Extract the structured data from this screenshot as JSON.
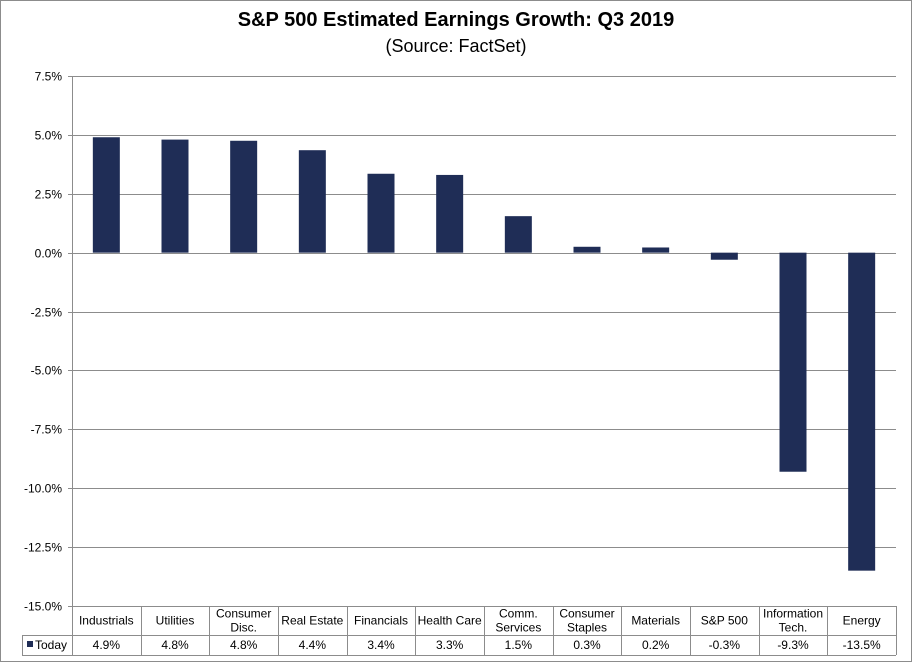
{
  "chart_data": {
    "type": "bar",
    "title": "S&P 500 Estimated Earnings Growth: Q3 2019",
    "subtitle": "(Source: FactSet)",
    "categories": [
      [
        "Industrials"
      ],
      [
        "Utilities"
      ],
      [
        "Consumer",
        "Disc."
      ],
      [
        "Real Estate"
      ],
      [
        "Financials"
      ],
      [
        "Health Care"
      ],
      [
        "Comm.",
        "Services"
      ],
      [
        "Consumer",
        "Staples"
      ],
      [
        "Materials"
      ],
      [
        "S&P 500"
      ],
      [
        "Information",
        "Tech."
      ],
      [
        "Energy"
      ]
    ],
    "series": [
      {
        "name": "Today",
        "color": "#1f2d56",
        "values": [
          4.9,
          4.8,
          4.75,
          4.35,
          3.35,
          3.3,
          1.55,
          0.25,
          0.22,
          -0.3,
          -9.3,
          -13.5
        ],
        "labels": [
          "4.9%",
          "4.8%",
          "4.8%",
          "4.4%",
          "3.4%",
          "3.3%",
          "1.5%",
          "0.3%",
          "0.2%",
          "-0.3%",
          "-9.3%",
          "-13.5%"
        ]
      }
    ],
    "ylim": [
      -15,
      7.5
    ],
    "yticks": [
      7.5,
      5.0,
      2.5,
      0.0,
      -2.5,
      -5.0,
      -7.5,
      -10.0,
      -12.5,
      -15.0
    ],
    "ytick_labels": [
      "7.5%",
      "5.0%",
      "2.5%",
      "0.0%",
      "-2.5%",
      "-5.0%",
      "-7.5%",
      "-10.0%",
      "-12.5%",
      "-15.0%"
    ],
    "grid": true,
    "legend": "data-table",
    "xlabel": "",
    "ylabel": ""
  }
}
